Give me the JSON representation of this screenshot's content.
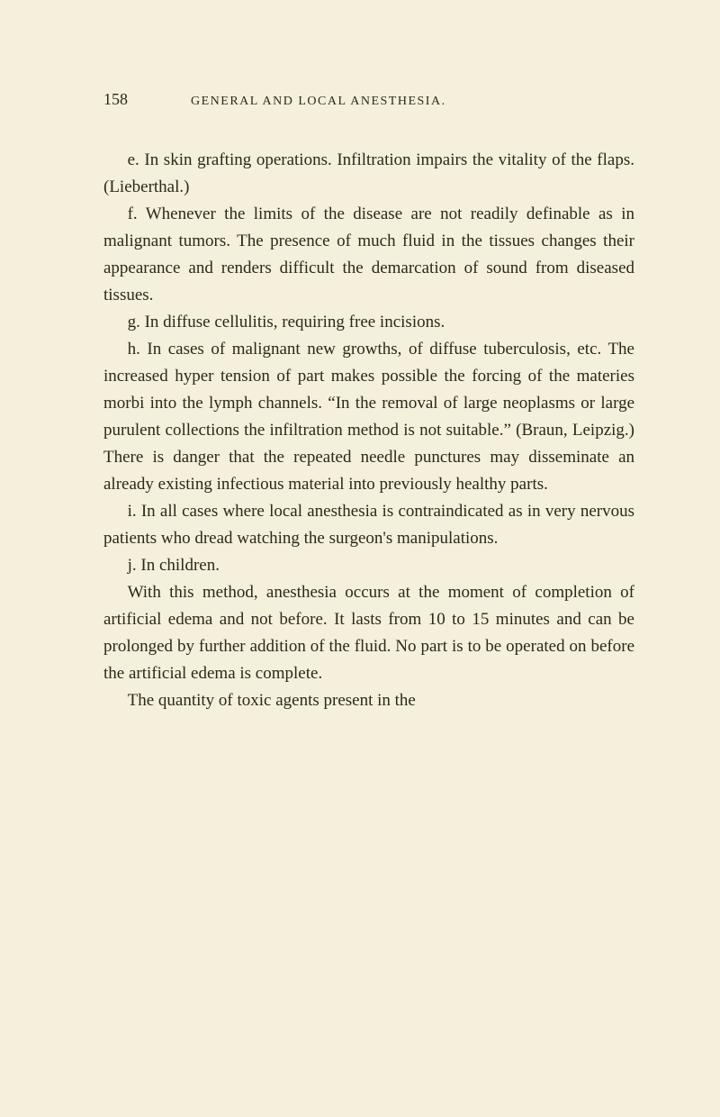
{
  "page": {
    "number": "158",
    "running_title": "GENERAL AND LOCAL ANESTHESIA.",
    "background_color": "#f5f0dc",
    "text_color": "#2a2a1a",
    "body_fontsize": 19,
    "line_height": 1.58,
    "header_fontsize": 14,
    "pagenum_fontsize": 18
  },
  "paragraphs": {
    "p1": "e. In skin grafting operations. Infiltration impairs the vitality of the flaps. (Lieberthal.)",
    "p2": "f. Whenever the limits of the disease are not readily definable as in malignant tumors. The presence of much fluid in the tissues changes their appearance and renders difficult the demarcation of sound from diseased tissues.",
    "p3": "g. In diffuse cellulitis, requiring free incisions.",
    "p4": "h. In cases of malignant new growths, of diffuse tuberculosis, etc. The increased hyper tension of part makes possible the forcing of the materies morbi into the lymph channels. “In the removal of large neoplasms or large purulent collections the infiltration method is not suitable.” (Braun, Leipzig.) There is danger that the repeated needle punctures may disseminate an already existing infectious material into previously healthy parts.",
    "p5": "i. In all cases where local anesthesia is contraindicated as in very nervous patients who dread watching the surgeon's manipulations.",
    "p6": "j. In children.",
    "p7": "With this method, anesthesia occurs at the moment of completion of artificial edema and not before. It lasts from 10 to 15 minutes and can be prolonged by further addition of the fluid. No part is to be operated on before the artificial edema is complete.",
    "p8": "The quantity of toxic agents present in the"
  }
}
